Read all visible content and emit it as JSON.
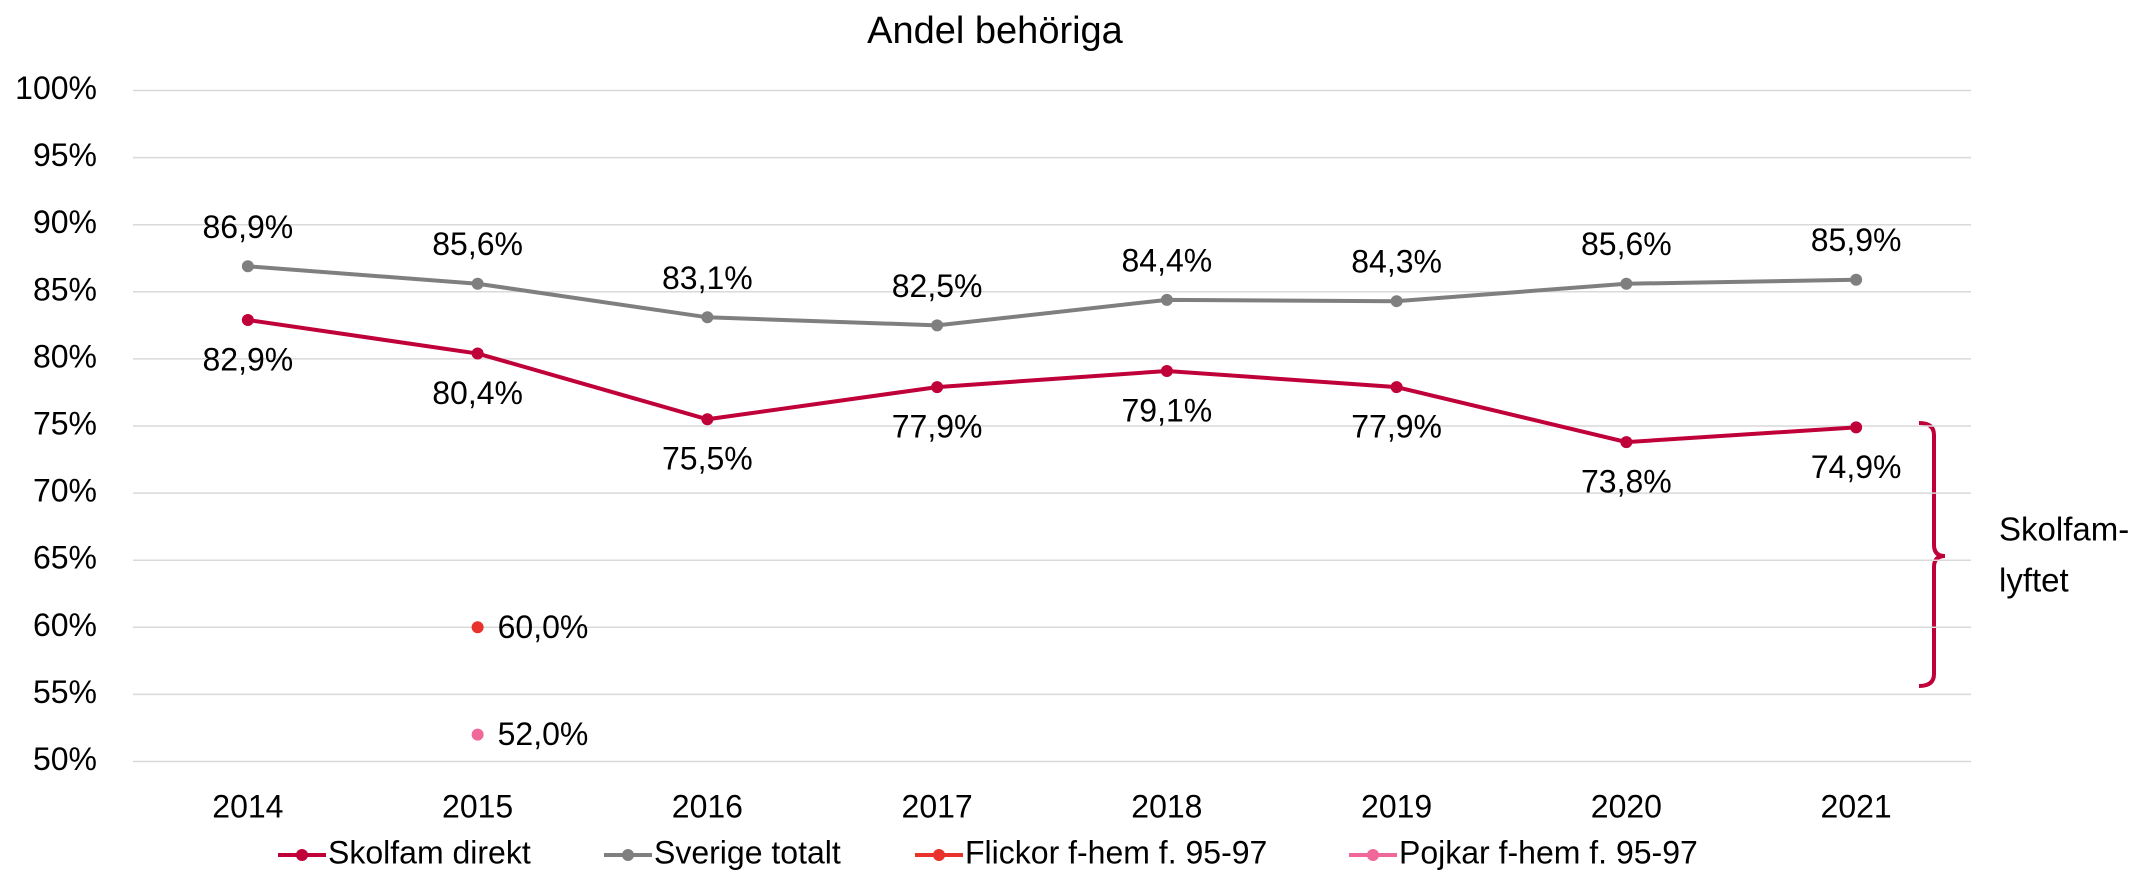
{
  "chart_data": {
    "type": "line",
    "title": "Andel behöriga",
    "categories": [
      "2014",
      "2015",
      "2016",
      "2017",
      "2018",
      "2019",
      "2020",
      "2021"
    ],
    "series": [
      {
        "name": "Skolfam direkt",
        "color": "#c00039",
        "values": [
          82.9,
          80.4,
          75.5,
          77.9,
          79.1,
          77.9,
          73.8,
          74.9
        ],
        "value_labels": [
          "82,9%",
          "80,4%",
          "75,5%",
          "77,9%",
          "79,1%",
          "77,9%",
          "73,8%",
          "74,9%"
        ]
      },
      {
        "name": "Sverige totalt",
        "color": "#7f7f7f",
        "values": [
          86.9,
          85.6,
          83.1,
          82.5,
          84.4,
          84.3,
          85.6,
          85.9
        ],
        "value_labels": [
          "86,9%",
          "85,6%",
          "83,1%",
          "82,5%",
          "84,4%",
          "84,3%",
          "85,6%",
          "85,9%"
        ]
      },
      {
        "name": "Flickor f-hem f. 95-97",
        "color": "#e8322b",
        "values": [
          null,
          60.0,
          null,
          null,
          null,
          null,
          null,
          null
        ],
        "value_labels": [
          null,
          "60,0%",
          null,
          null,
          null,
          null,
          null,
          null
        ]
      },
      {
        "name": "Pojkar f-hem f. 95-97",
        "color": "#f0689a",
        "values": [
          null,
          52.0,
          null,
          null,
          null,
          null,
          null,
          null
        ],
        "value_labels": [
          null,
          "52,0%",
          null,
          null,
          null,
          null,
          null,
          null
        ]
      }
    ],
    "ylim": [
      50,
      100
    ],
    "yticks": [
      {
        "value": 50,
        "label": "50%"
      },
      {
        "value": 55,
        "label": "55%"
      },
      {
        "value": 60,
        "label": "60%"
      },
      {
        "value": 65,
        "label": "65%"
      },
      {
        "value": 70,
        "label": "70%"
      },
      {
        "value": 75,
        "label": "75%"
      },
      {
        "value": 80,
        "label": "80%"
      },
      {
        "value": 85,
        "label": "85%"
      },
      {
        "value": 90,
        "label": "90%"
      },
      {
        "value": 95,
        "label": "95%"
      },
      {
        "value": 100,
        "label": "100%"
      }
    ],
    "grid": true,
    "legend": "bottom",
    "annotation": [
      "Skolfam-",
      "lyftet"
    ]
  }
}
